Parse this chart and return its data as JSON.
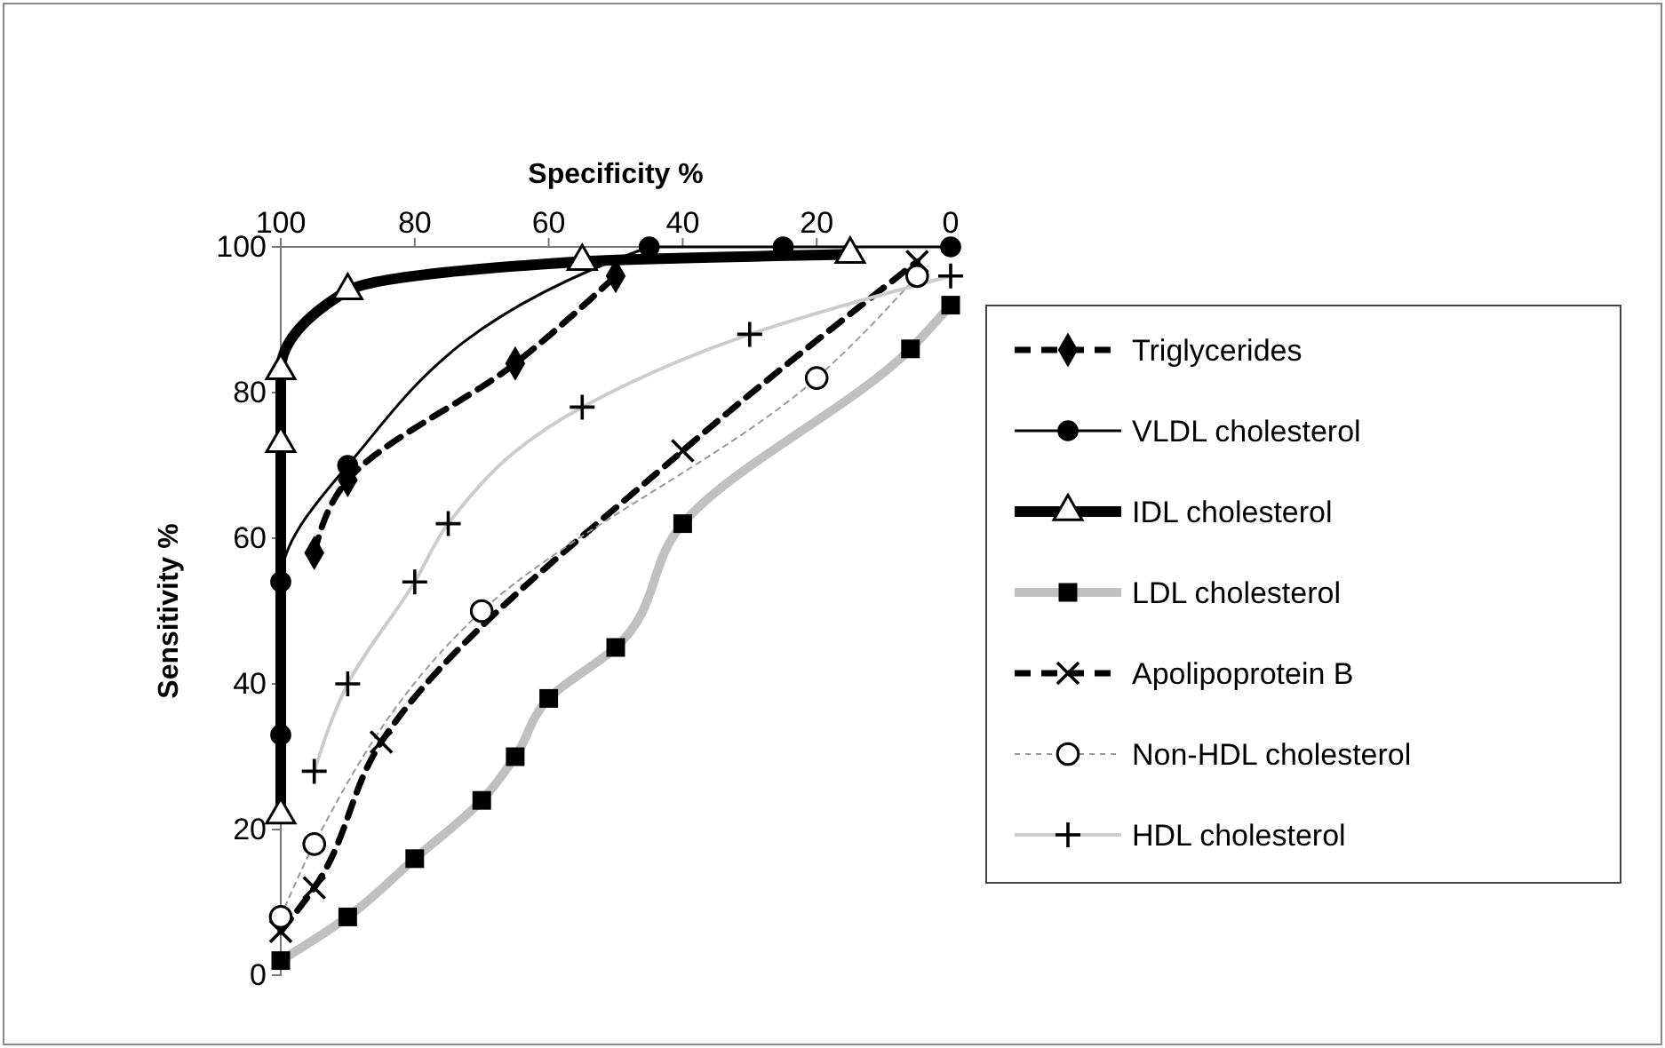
{
  "chart_data": {
    "type": "line",
    "xlabel": "Specificity %",
    "ylabel": "Sensitivity %",
    "xlim": [
      100,
      0
    ],
    "xticks": [
      100,
      80,
      60,
      40,
      20,
      0
    ],
    "ylim": [
      0,
      100
    ],
    "yticks": [
      0,
      20,
      40,
      60,
      80,
      100
    ],
    "grid": false,
    "legend": "right",
    "series": [
      {
        "name": "Triglycerides",
        "color": "#000000",
        "marker": "diamond",
        "line_style": "dashed",
        "x": [
          95,
          90,
          65,
          50
        ],
        "values": [
          58,
          68,
          84,
          96
        ]
      },
      {
        "name": "VLDL cholesterol",
        "color": "#000000",
        "marker": "circle",
        "line_style": "solid",
        "x": [
          100,
          100,
          90,
          45,
          25,
          0
        ],
        "values": [
          33,
          54,
          70,
          100,
          100,
          100
        ]
      },
      {
        "name": "IDL cholesterol",
        "color": "#000000",
        "marker": "triangle",
        "line_style": "solid",
        "x": [
          100,
          100,
          100,
          90,
          55,
          15
        ],
        "values": [
          22,
          73,
          83,
          94,
          98,
          99
        ]
      },
      {
        "name": "LDL cholesterol",
        "color": "#c0c0c0",
        "marker": "square",
        "line_style": "solid",
        "x": [
          100,
          90,
          80,
          70,
          65,
          60,
          50,
          40,
          6,
          0
        ],
        "values": [
          2,
          8,
          16,
          24,
          30,
          38,
          45,
          62,
          86,
          92
        ]
      },
      {
        "name": "Apolipoprotein B",
        "color": "#000000",
        "marker": "cross",
        "line_style": "dashed",
        "x": [
          100,
          95,
          85,
          40,
          5
        ],
        "values": [
          6,
          12,
          32,
          72,
          98
        ]
      },
      {
        "name": "Non-HDL cholesterol",
        "color": "#999999",
        "marker": "circle",
        "line_style": "dotted",
        "x": [
          100,
          95,
          70,
          20,
          5
        ],
        "values": [
          8,
          18,
          50,
          82,
          96
        ]
      },
      {
        "name": "HDL cholesterol",
        "color": "#cccccc",
        "marker": "plus",
        "line_style": "solid",
        "x": [
          95,
          90,
          80,
          75,
          55,
          30,
          0
        ],
        "values": [
          28,
          40,
          54,
          62,
          78,
          88,
          96
        ]
      }
    ]
  }
}
